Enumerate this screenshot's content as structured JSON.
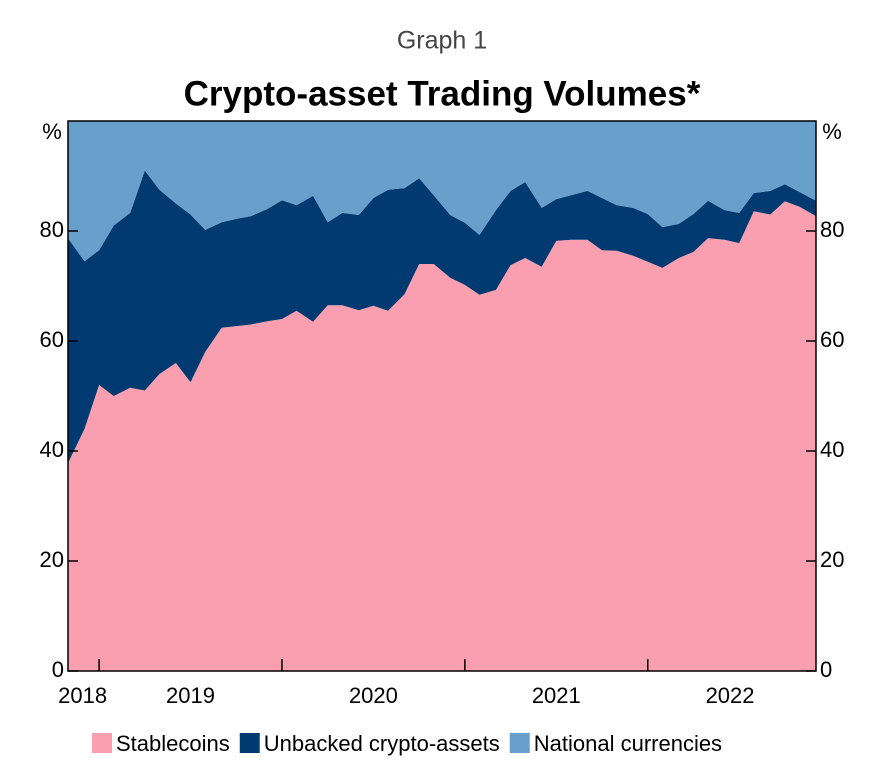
{
  "chart_data": {
    "type": "stacked_area",
    "supertitle": "Graph 1",
    "title": "Crypto-asset Trading Volumes*",
    "y_unit": "%",
    "x": [
      2018.83,
      2018.92,
      2019.0,
      2019.08,
      2019.17,
      2019.25,
      2019.33,
      2019.42,
      2019.5,
      2019.58,
      2019.67,
      2019.75,
      2019.83,
      2019.92,
      2020.0,
      2020.08,
      2020.17,
      2020.25,
      2020.33,
      2020.42,
      2020.5,
      2020.58,
      2020.67,
      2020.75,
      2020.83,
      2020.92,
      2021.0,
      2021.08,
      2021.17,
      2021.25,
      2021.33,
      2021.42,
      2021.5,
      2021.58,
      2021.67,
      2021.75,
      2021.83,
      2021.92,
      2022.0,
      2022.08,
      2022.17,
      2022.25,
      2022.33,
      2022.42,
      2022.5,
      2022.58,
      2022.67,
      2022.75,
      2022.83,
      2022.92
    ],
    "series": [
      {
        "name": "Stablecoins",
        "color": "#fa9fb0",
        "values": [
          37.8,
          44,
          52,
          50,
          51.5,
          51,
          54,
          56,
          52.5,
          58,
          62.4,
          62.7,
          63,
          63.6,
          64,
          65.5,
          63.5,
          66.5,
          66.5,
          65.6,
          66.4,
          65.5,
          68.5,
          74,
          74,
          71.5,
          70.2,
          68.4,
          69.3,
          73.8,
          75.1,
          73.5,
          78.2,
          78.4,
          78.4,
          76.5,
          76.4,
          75.5,
          74.4,
          73.3,
          75.1,
          76.2,
          78.7,
          78.4,
          77.8,
          83.6,
          83,
          85.4,
          84.4,
          82.7
        ]
      },
      {
        "name": "Unbacked crypto-assets",
        "color": "#003a70",
        "values": [
          40.9,
          30.5,
          24.5,
          31,
          31.8,
          40,
          33.5,
          29,
          30.5,
          22.2,
          19.2,
          19.5,
          19.7,
          20.4,
          21.6,
          19.2,
          22.9,
          15.1,
          16.8,
          17.3,
          19.6,
          22,
          19.3,
          15.6,
          12.5,
          11.4,
          11.3,
          10.9,
          14.5,
          13.5,
          13.8,
          10.7,
          7.6,
          8.1,
          8.9,
          9.5,
          8.3,
          8.7,
          8.7,
          7.4,
          6.2,
          6.9,
          6.8,
          5.4,
          5.5,
          3.3,
          4.3,
          3.1,
          2.7,
          2.8
        ]
      },
      {
        "name": "National currencies",
        "color": "#68a0cc",
        "values": [
          21.3,
          25.5,
          23.5,
          19,
          16.7,
          9,
          12.5,
          15,
          17,
          19.8,
          18.4,
          17.8,
          17.3,
          16,
          14.4,
          15.3,
          13.6,
          18.4,
          16.7,
          17.1,
          14,
          12.5,
          12.2,
          10.4,
          13.5,
          17.1,
          18.5,
          20.7,
          16.2,
          12.7,
          11.1,
          15.8,
          14.2,
          13.5,
          12.7,
          14,
          15.3,
          15.8,
          16.9,
          19.3,
          18.7,
          16.9,
          14.5,
          16.2,
          16.7,
          13.1,
          12.7,
          11.5,
          12.9,
          14.5
        ]
      }
    ],
    "xlim": [
      2018.83,
      2022.92
    ],
    "xticks": [
      2019,
      2020,
      2021,
      2022
    ],
    "year_labels": [
      {
        "value": 2018.91,
        "label": "2018"
      },
      {
        "value": 2019.5,
        "label": "2019"
      },
      {
        "value": 2020.5,
        "label": "2020"
      },
      {
        "value": 2021.5,
        "label": "2021"
      },
      {
        "value": 2022.45,
        "label": "2022"
      }
    ],
    "ylim": [
      0,
      100
    ],
    "yticks": [
      0,
      20,
      40,
      60,
      80
    ],
    "legend": "bottom"
  }
}
